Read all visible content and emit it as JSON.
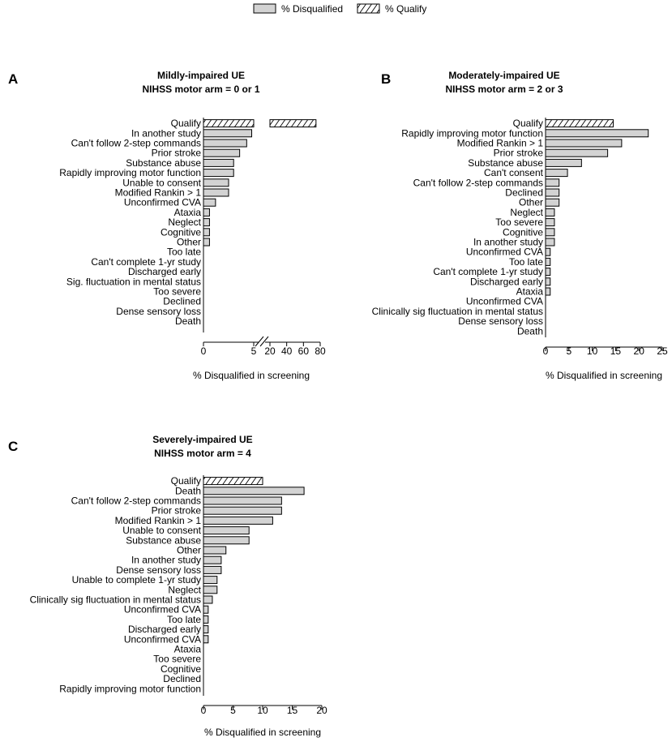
{
  "legend": {
    "disqualified_label": "% Disqualified",
    "qualify_label": "% Qualify"
  },
  "colors": {
    "bar_fill": "#d3d3d3",
    "bar_stroke": "#000000",
    "background": "#ffffff"
  },
  "chart_data": [
    {
      "panel": "A",
      "type": "bar",
      "orientation": "horizontal",
      "title": "Mildly-impaired UE",
      "subtitle": "NIHSS motor arm = 0 or 1",
      "xlabel": "% Disqualified in screening",
      "x_axis": {
        "broken": true,
        "segment1": {
          "range": [
            0,
            5
          ],
          "ticks": [
            "0",
            "5"
          ]
        },
        "segment2": {
          "range": [
            20,
            80
          ],
          "ticks": [
            "20",
            "40",
            "60",
            "80"
          ]
        }
      },
      "categories": [
        "Qualify",
        "In another study",
        "Can't follow 2-step commands",
        "Prior stroke",
        "Substance abuse",
        "Rapidly improving motor function",
        "Unable to consent",
        "Modified Rankin > 1",
        "Unconfirmed CVA",
        "Ataxia",
        "Neglect",
        "Cognitive",
        "Other",
        "Too late",
        "Can't complete 1-yr study",
        "Discharged early",
        "Sig. fluctuation in mental status",
        "Too severe",
        "Declined",
        "Dense sensory loss",
        "Death"
      ],
      "values": [
        75,
        4.8,
        4.3,
        3.6,
        3.0,
        3.0,
        2.5,
        2.5,
        1.2,
        0.6,
        0.6,
        0.6,
        0.6,
        0,
        0,
        0,
        0,
        0,
        0,
        0,
        0
      ],
      "series": [
        {
          "name": "% Qualify",
          "index": 0
        },
        {
          "name": "% Disqualified",
          "indices": "1-20"
        }
      ]
    },
    {
      "panel": "B",
      "type": "bar",
      "orientation": "horizontal",
      "title": "Moderately-impaired UE",
      "subtitle": "NIHSS motor arm = 2 or 3",
      "xlabel": "% Disqualified in screening",
      "xlim": [
        0,
        25
      ],
      "xticks": [
        "0",
        "5",
        "10",
        "15",
        "20",
        "25"
      ],
      "categories": [
        "Qualify",
        "Rapidly improving motor function",
        "Modified Rankin > 1",
        "Prior stroke",
        "Substance abuse",
        "Can't consent",
        "Can't follow 2-step commands",
        "Declined",
        "Other",
        "Neglect",
        "Too severe",
        "Cognitive",
        "In another study",
        "Unconfirmed CVA",
        "Too late",
        "Can't complete 1-yr study",
        "Discharged early",
        "Ataxia",
        "Unconfirmed CVA",
        "Clinically sig fluctuation in mental status",
        "Dense sensory loss",
        "Death"
      ],
      "values": [
        14.5,
        22,
        16.3,
        13.3,
        7.7,
        4.7,
        2.9,
        2.9,
        2.9,
        1.9,
        1.9,
        1.9,
        1.9,
        1.0,
        1.0,
        1.0,
        1.0,
        1.0,
        0,
        0,
        0,
        0
      ],
      "series": [
        {
          "name": "% Qualify",
          "index": 0
        },
        {
          "name": "% Disqualified",
          "indices": "1-21"
        }
      ]
    },
    {
      "panel": "C",
      "type": "bar",
      "orientation": "horizontal",
      "title": "Severely-impaired UE",
      "subtitle": "NIHSS motor arm = 4",
      "xlabel": "% Disqualified in screening",
      "xlim": [
        0,
        20
      ],
      "xticks": [
        "0",
        "5",
        "10",
        "15",
        "20"
      ],
      "categories": [
        "Qualify",
        "Death",
        "Can't follow 2-step commands",
        "Prior stroke",
        "Modified Rankin > 1",
        "Unable to consent",
        "Substance abuse",
        "Other",
        "In another study",
        "Dense sensory loss",
        "Unable to complete 1-yr study",
        "Neglect",
        "Clinically sig fluctuation in mental status",
        "Unconfirmed CVA",
        "Too late",
        "Discharged early",
        "Unconfirmed CVA",
        "Ataxia",
        "Too severe",
        "Cognitive",
        "Declined",
        "Rapidly improving motor function"
      ],
      "values": [
        10,
        17,
        13.2,
        13.2,
        11.7,
        7.7,
        7.7,
        3.8,
        3.0,
        3.0,
        2.3,
        2.3,
        1.5,
        0.8,
        0.8,
        0.8,
        0.8,
        0,
        0,
        0,
        0,
        0
      ],
      "series": [
        {
          "name": "% Qualify",
          "index": 0
        },
        {
          "name": "% Disqualified",
          "indices": "1-21"
        }
      ]
    }
  ]
}
